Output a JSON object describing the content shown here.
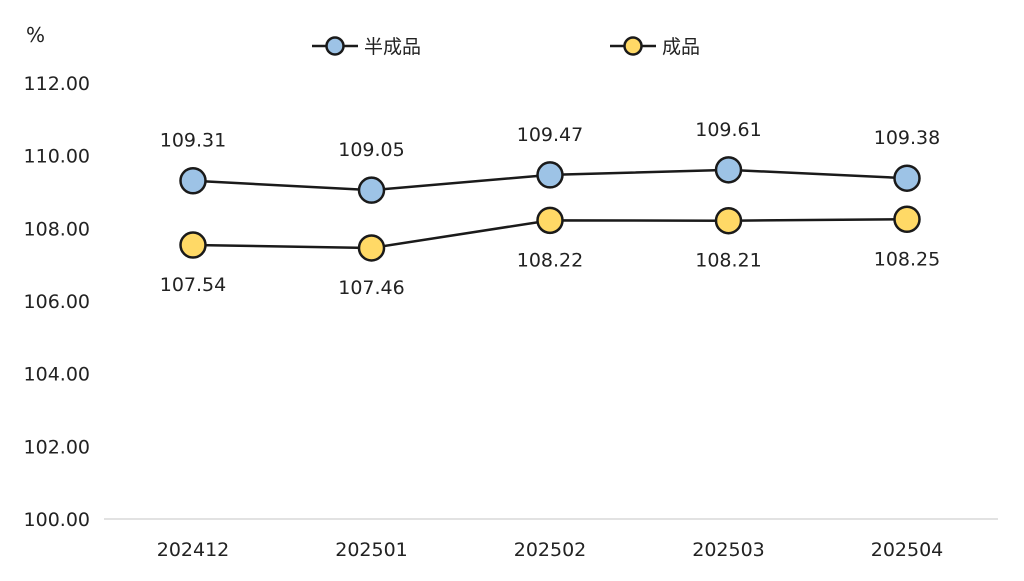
{
  "chart_data": {
    "type": "line",
    "ylabel": "%",
    "ylim": [
      100,
      112
    ],
    "yticks": [
      "100.00",
      "102.00",
      "104.00",
      "106.00",
      "108.00",
      "110.00",
      "112.00"
    ],
    "categories": [
      "202412",
      "202501",
      "202502",
      "202503",
      "202504"
    ],
    "legend_position": "top",
    "grid": false,
    "series": [
      {
        "name": "半成品",
        "values": [
          109.31,
          109.05,
          109.47,
          109.61,
          109.38
        ],
        "labels": [
          "109.31",
          "109.05",
          "109.47",
          "109.61",
          "109.38"
        ],
        "color": "#9dc3e6",
        "label_position": "above"
      },
      {
        "name": "成品",
        "values": [
          107.54,
          107.46,
          108.22,
          108.21,
          108.25
        ],
        "labels": [
          "107.54",
          "107.46",
          "108.22",
          "108.21",
          "108.25"
        ],
        "color": "#ffd966",
        "label_position": "below"
      }
    ],
    "line_color": "#1a1a1a",
    "axis_color": "#d9d9d9"
  }
}
